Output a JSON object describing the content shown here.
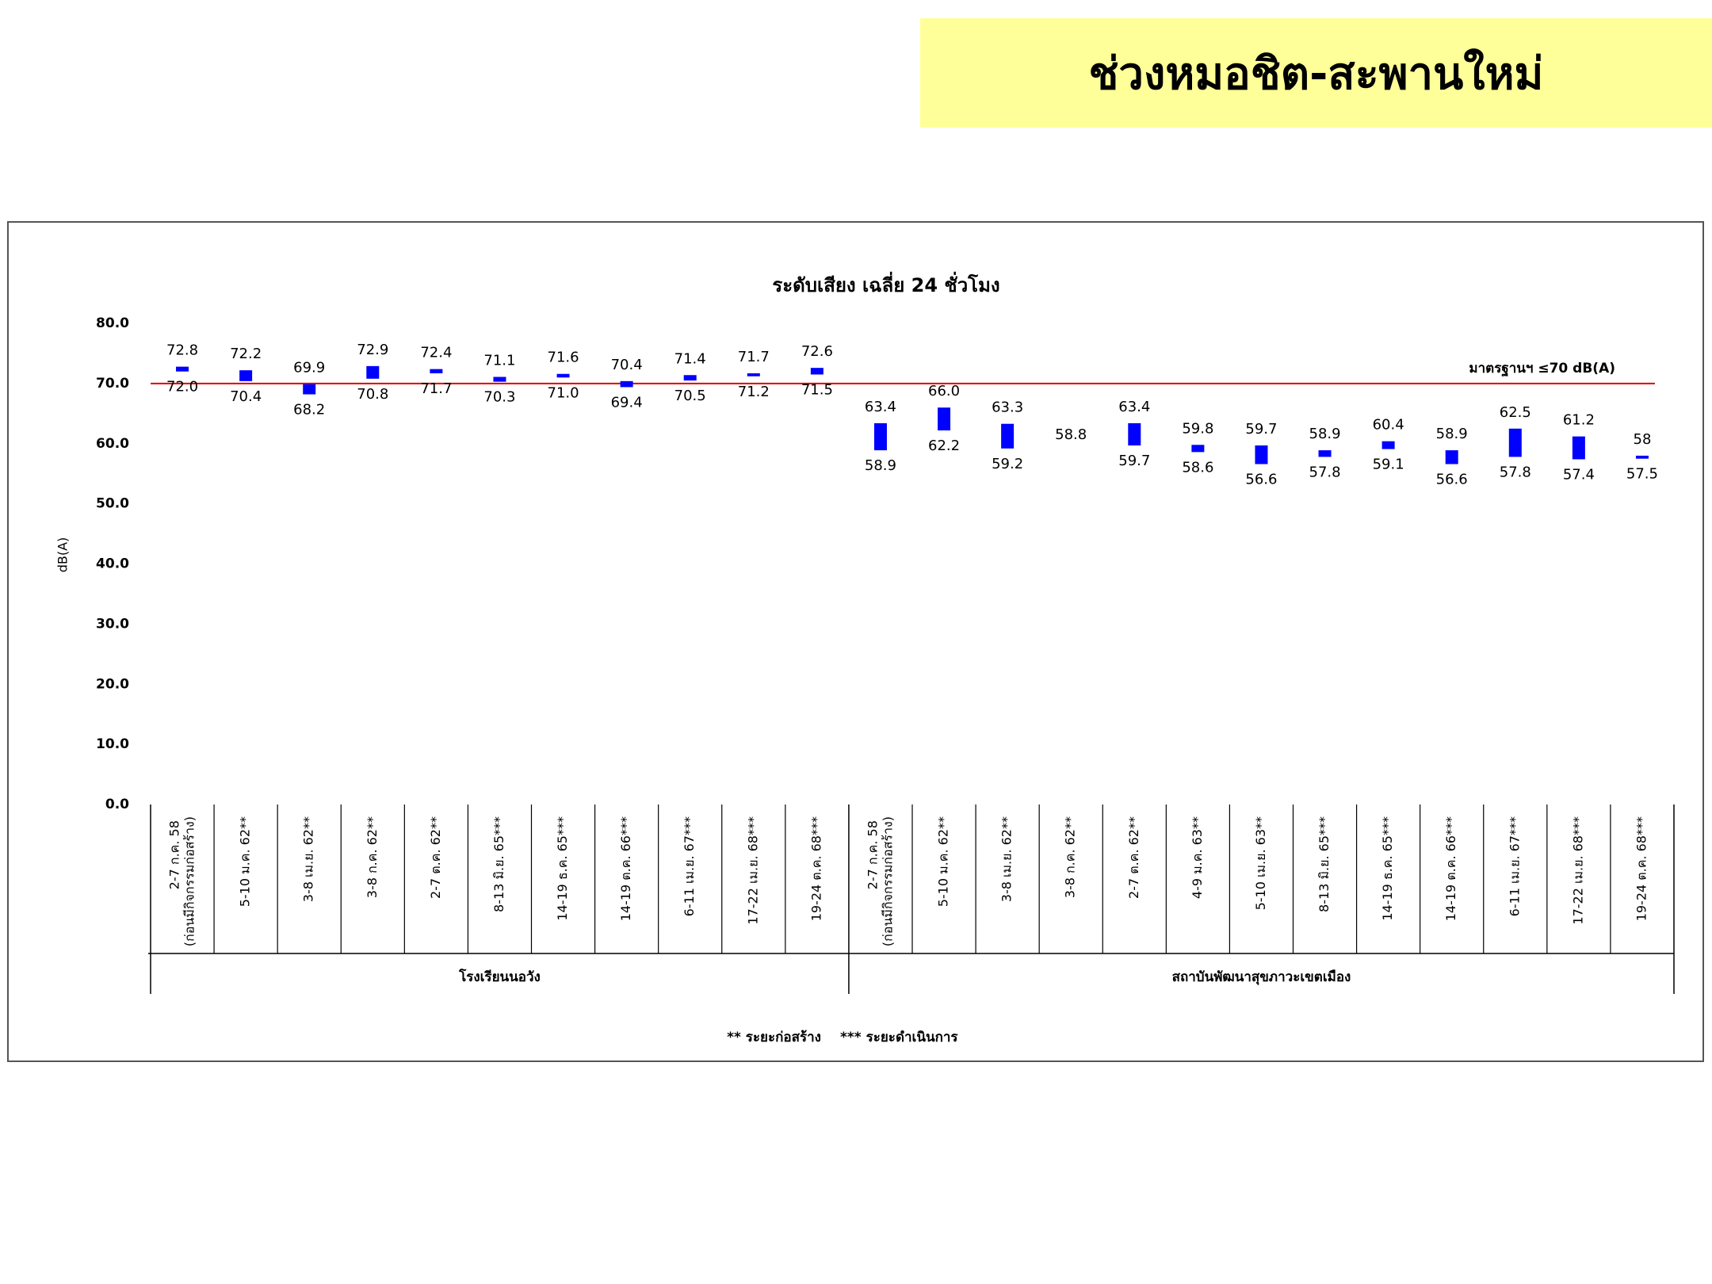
{
  "header": {
    "title": "ช่วงหมอชิต-สะพานใหม่"
  },
  "chart_data": {
    "type": "floating-bar",
    "title": "ระดับเสียง เฉลี่ย 24 ชั่วโมง",
    "ylabel": "dB(A)",
    "ylim": [
      0,
      80
    ],
    "yticks": [
      {
        "value": 0,
        "label": "0.0"
      },
      {
        "value": 10,
        "label": "10.0"
      },
      {
        "value": 20,
        "label": "20.0"
      },
      {
        "value": 30,
        "label": "30.0"
      },
      {
        "value": 40,
        "label": "40.0"
      },
      {
        "value": 50,
        "label": "50.0"
      },
      {
        "value": 60,
        "label": "60.0"
      },
      {
        "value": 70,
        "label": "70.0"
      },
      {
        "value": 80,
        "label": "80.0"
      }
    ],
    "reference_line": {
      "value": 70,
      "label": "มาตรฐานฯ ≤70 dB(A)",
      "color": "#e00000"
    },
    "color": "#0000ff",
    "groups": [
      {
        "name": "โรงเรียนนอวัง",
        "categories": [
          "2-7 ก.ค. 58 (ก่อนมีกิจกรรมก่อสร้าง)",
          "5-10 ม.ค. 62**",
          "3-8 เม.ย. 62**",
          "3-8 ก.ค. 62**",
          "2-7 ต.ค. 62**",
          "8-13 มิ.ย. 65***",
          "14-19 ธ.ค. 65***",
          "14-19 ต.ค. 66***",
          "6-11 เม.ย. 67***",
          "17-22 เม.ย. 68***",
          "19-24 ต.ค. 68***"
        ],
        "series": [
          {
            "values": [
              72.8,
              72.2,
              69.9,
              72.9,
              72.4,
              71.1,
              71.6,
              70.4,
              71.4,
              71.7,
              72.6
            ],
            "value_labels": [
              "72.8",
              "72.2",
              "69.9",
              "72.9",
              "72.4",
              "71.1",
              "71.6",
              "70.4",
              "71.4",
              "71.7",
              "72.6"
            ]
          },
          {
            "values": [
              72.0,
              70.4,
              68.2,
              70.8,
              71.7,
              70.3,
              71.0,
              69.4,
              70.5,
              71.2,
              71.5
            ],
            "value_labels": [
              "72.0",
              "70.4",
              "68.2",
              "70.8",
              "71.7",
              "70.3",
              "71.0",
              "69.4",
              "70.5",
              "71.2",
              "71.5"
            ]
          }
        ]
      },
      {
        "name": "สถาบันพัฒนาสุขภาวะเขตเมือง",
        "categories": [
          "2-7 ก.ค. 58 (ก่อนมีกิจกรรมก่อสร้าง)",
          "5-10 ม.ค. 62**",
          "3-8 เม.ย. 62**",
          "3-8 ก.ค. 62**",
          "2-7 ต.ค. 62**",
          "4-9 ม.ค. 63**",
          "5-10 เม.ย. 63**",
          "8-13 มิ.ย. 65***",
          "14-19 ธ.ค. 65***",
          "14-19 ต.ค. 66***",
          "6-11 เม.ย. 67***",
          "17-22 เม.ย. 68***",
          "19-24 ต.ค. 68***"
        ],
        "series": [
          {
            "values": [
              63.4,
              66.0,
              63.3,
              58.8,
              63.4,
              59.8,
              59.7,
              58.9,
              60.4,
              58.9,
              62.5,
              61.2,
              58
            ],
            "value_labels": [
              "63.4",
              "66.0",
              "63.3",
              "58.8",
              "63.4",
              "59.8",
              "59.7",
              "58.9",
              "60.4",
              "58.9",
              "62.5",
              "61.2",
              "58"
            ]
          },
          {
            "values": [
              58.9,
              62.2,
              59.2,
              null,
              59.7,
              58.6,
              56.6,
              57.8,
              59.1,
              56.6,
              57.8,
              57.4,
              57.5
            ],
            "value_labels": [
              "58.9",
              "62.2",
              "59.2",
              null,
              "59.7",
              "58.6",
              "56.6",
              "57.8",
              "59.1",
              "56.6",
              "57.8",
              "57.4",
              "57.5"
            ]
          }
        ]
      }
    ],
    "footnotes": [
      "** ระยะก่อสร้าง",
      "*** ระยะดำเนินการ"
    ]
  }
}
